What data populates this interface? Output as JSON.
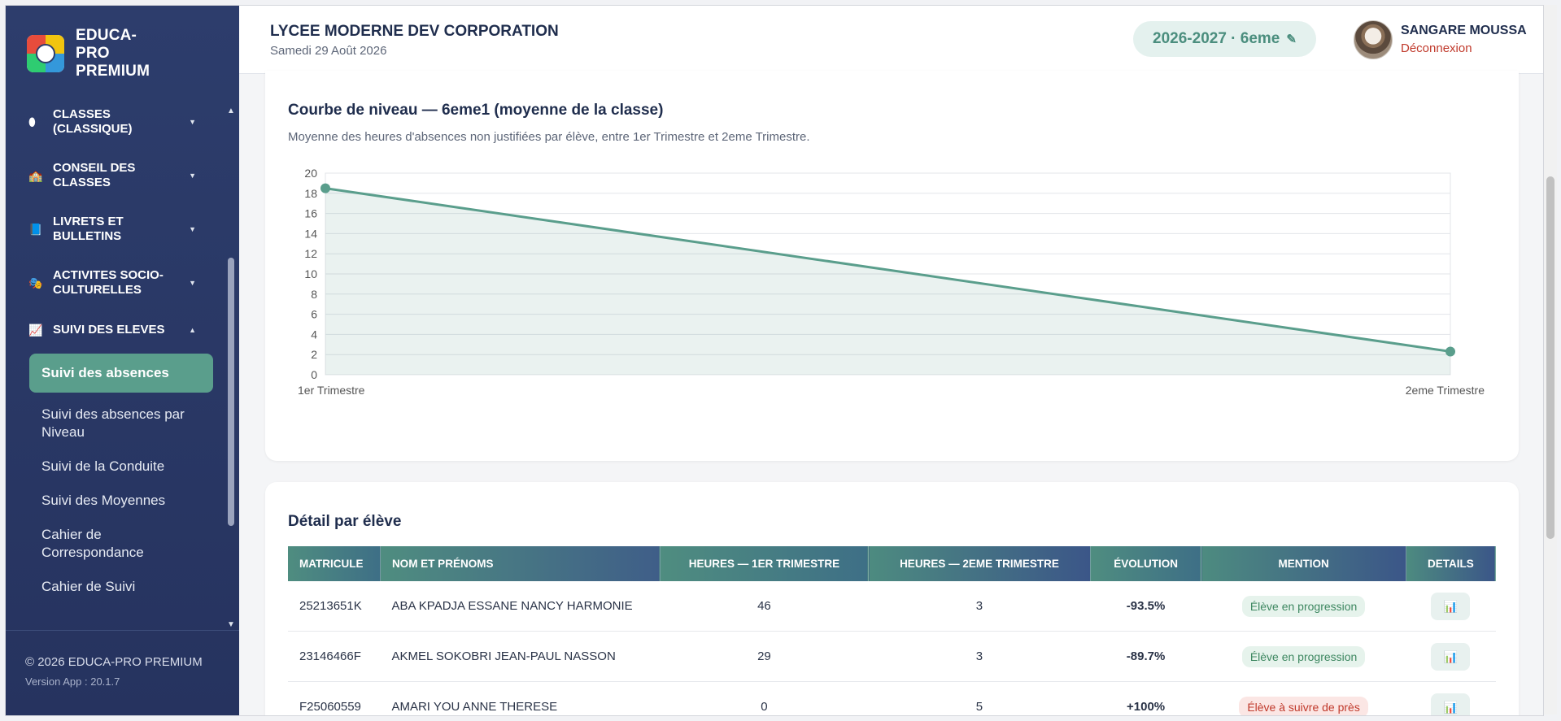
{
  "app": {
    "brand": "EDUCA-PRO PREMIUM"
  },
  "sidebar": {
    "items": [
      {
        "icon": "⬮",
        "label": "CLASSES (CLASSIQUE)"
      },
      {
        "icon": "🏫",
        "label": "CONSEIL DES CLASSES"
      },
      {
        "icon": "📘",
        "label": "LIVRETS ET BULLETINS"
      },
      {
        "icon": "🎭",
        "label": "ACTIVITES SOCIO-CULTURELLES"
      },
      {
        "icon": "📈",
        "label": "SUIVI DES ELEVES"
      }
    ],
    "subitems": [
      {
        "label": "Suivi des absences",
        "active": true
      },
      {
        "label": "Suivi des absences par Niveau"
      },
      {
        "label": "Suivi de la Conduite"
      },
      {
        "label": "Suivi des Moyennes"
      },
      {
        "label": "Cahier de Correspondance"
      },
      {
        "label": "Cahier de Suivi"
      }
    ],
    "footer": {
      "copyright": "© 2026 EDUCA-PRO PREMIUM",
      "version": "Version App : 20.1.7"
    }
  },
  "header": {
    "school": "LYCEE MODERNE DEV CORPORATION",
    "date": "Samedi 29 Août 2026",
    "year_class": "2026-2027 · 6eme",
    "user": "SANGARE MOUSSA",
    "logout": "Déconnexion"
  },
  "chart_card": {
    "title": "Courbe de niveau — 6eme1 (moyenne de la classe)",
    "subtitle": "Moyenne des heures d'absences non justifiées par élève, entre 1er Trimestre et 2eme Trimestre."
  },
  "chart_data": {
    "type": "area",
    "categories": [
      "1er Trimestre",
      "2eme Trimestre"
    ],
    "series": [
      {
        "values": [
          18.5,
          2.3
        ]
      }
    ],
    "ylim": [
      0,
      20
    ],
    "yticks": [
      0,
      2,
      4,
      6,
      8,
      10,
      12,
      14,
      16,
      18,
      20
    ],
    "grid": true,
    "color": "#5a9e8c"
  },
  "detail": {
    "title": "Détail par élève",
    "columns": [
      "MATRICULE",
      "NOM ET PRÉNOMS",
      "HEURES — 1ER TRIMESTRE",
      "HEURES — 2EME TRIMESTRE",
      "ÉVOLUTION",
      "MENTION",
      "DETAILS"
    ],
    "rows": [
      {
        "matricule": "25213651K",
        "nom": "ABA KPADJA ESSANE NANCY HARMONIE",
        "h1": "46",
        "h2": "3",
        "evolution": "-93.5%",
        "mention": "Élève en progression",
        "kind": "good",
        "details_icon": "📊"
      },
      {
        "matricule": "23146466F",
        "nom": "AKMEL SOKOBRI JEAN-PAUL NASSON",
        "h1": "29",
        "h2": "3",
        "evolution": "-89.7%",
        "mention": "Élève en progression",
        "kind": "good",
        "details_icon": "📊"
      },
      {
        "matricule": "F25060559",
        "nom": "AMARI YOU ANNE THERESE",
        "h1": "0",
        "h2": "5",
        "evolution": "+100%",
        "mention": "Élève à suivre de près",
        "kind": "bad",
        "details_icon": "📊"
      }
    ]
  },
  "icons": {
    "edit": "pencil-icon",
    "chart": "bar-chart-icon"
  }
}
